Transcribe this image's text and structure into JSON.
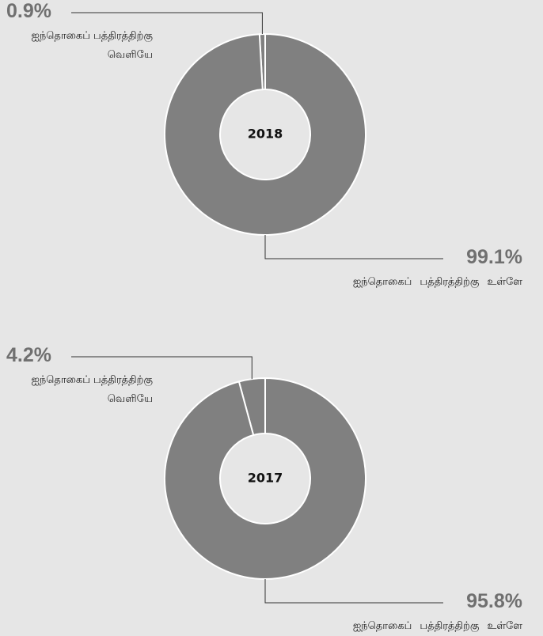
{
  "chart_data": [
    {
      "type": "pie",
      "title": "2018",
      "categories": [
        "ஐந்தொகைப் பத்திரத்திற்கு வெளியே",
        "ஐந்தொகைப் பத்திரத்திற்கு உள்ளே"
      ],
      "values": [
        0.9,
        99.1
      ],
      "value_labels": [
        "0.9%",
        "99.1%"
      ],
      "color": "#808080"
    },
    {
      "type": "pie",
      "title": "2017",
      "categories": [
        "ஐந்தொகைப் பத்திரத்திற்கு வெளியே",
        "ஐந்தொகைப் பத்திரத்திற்கு உள்ளே"
      ],
      "values": [
        4.2,
        95.8
      ],
      "value_labels": [
        "4.2%",
        "95.8%"
      ],
      "color": "#808080"
    }
  ]
}
